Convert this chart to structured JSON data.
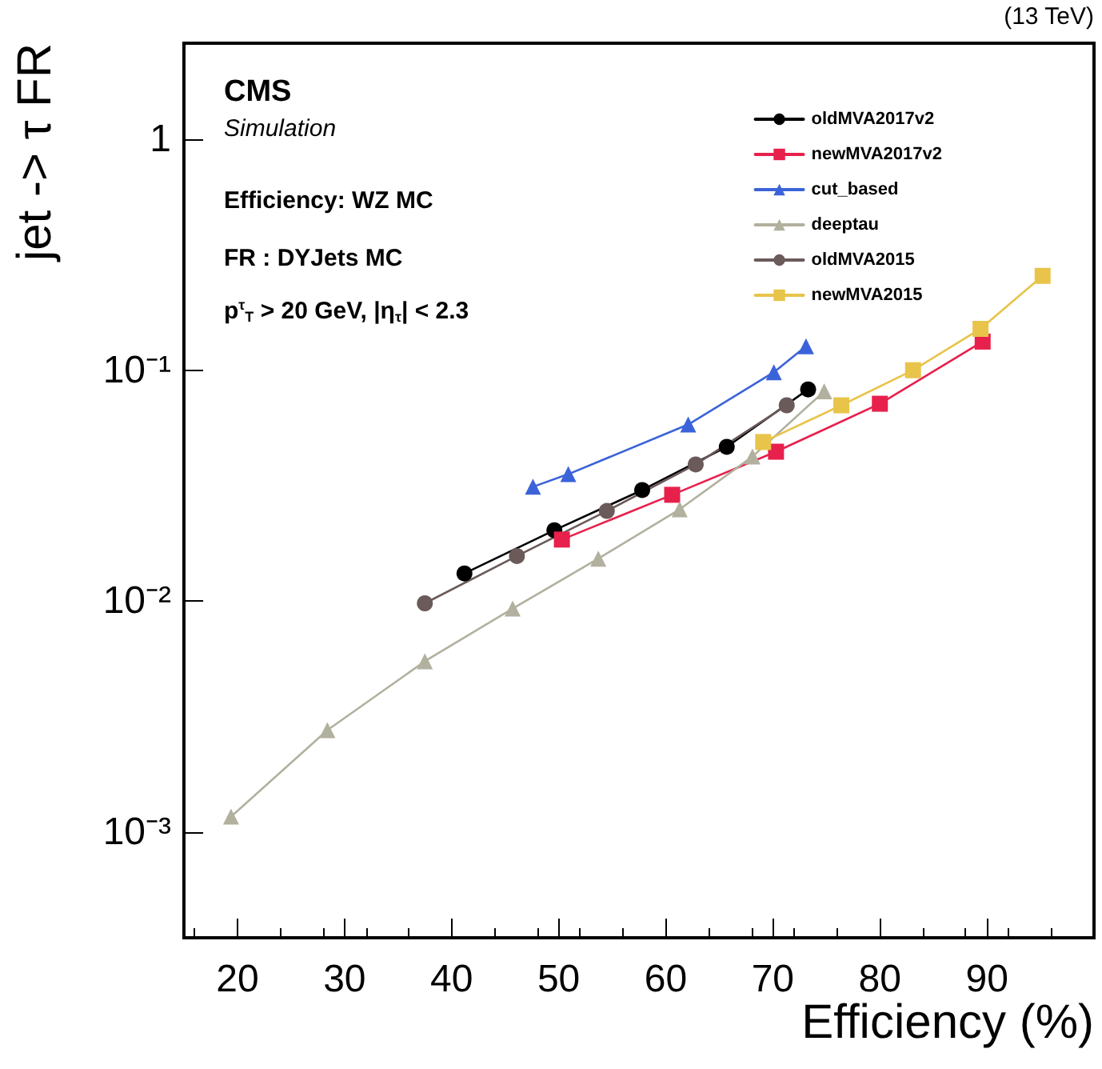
{
  "chart_data": {
    "type": "line",
    "xlabel": "Efficiency (%)",
    "ylabel": "jet -> τ FR",
    "annotations": [
      "(13 TeV)",
      "CMS",
      "Simulation",
      "Efficiency: WZ MC",
      "FR : DYJets MC",
      "p$^{τ}$$_{T}$ > 20 GeV, |η$_{τ}$| < 2.3"
    ],
    "log": "y",
    "xlim": [
      15,
      100
    ],
    "ylim": [
      0.00035,
      2.6
    ],
    "xticks": [
      20,
      30,
      40,
      50,
      60,
      70,
      80,
      90
    ],
    "yticks": [
      {
        "value": 0.001,
        "label": "10⁻³"
      },
      {
        "value": 0.01,
        "label": "10⁻²"
      },
      {
        "value": 0.1,
        "label": "10⁻¹"
      },
      1
    ],
    "grid": false,
    "legend": "top right",
    "line_style": "solid",
    "series": [
      {
        "name": "oldMVA2017v2",
        "color": "#000000",
        "marker": "circle",
        "x": [
          41.2,
          49.6,
          57.8,
          65.7,
          73.3
        ],
        "values": [
          0.0132,
          0.0203,
          0.0303,
          0.0466,
          0.0826
        ]
      },
      {
        "name": "newMVA2017v2",
        "color": "#e8204c",
        "marker": "square",
        "x": [
          50.3,
          60.6,
          70.3,
          80.0,
          89.6
        ],
        "values": [
          0.0185,
          0.0289,
          0.0444,
          0.0716,
          0.133
        ]
      },
      {
        "name": "cut_based",
        "color": "#3b63d9",
        "marker": "triangle",
        "x": [
          47.6,
          50.9,
          62.1,
          70.1,
          73.1
        ],
        "values": [
          0.0313,
          0.0355,
          0.0582,
          0.098,
          0.127
        ]
      },
      {
        "name": "deeptau",
        "color": "#b2b09e",
        "marker": "triangle",
        "x": [
          19.4,
          28.4,
          37.5,
          45.7,
          53.7,
          61.3,
          68.1,
          74.8
        ],
        "values": [
          0.00117,
          0.00277,
          0.0055,
          0.0093,
          0.0153,
          0.025,
          0.0423,
          0.081
        ]
      },
      {
        "name": "oldMVA2015",
        "color": "#6b5a5a",
        "marker": "circle",
        "x": [
          37.5,
          46.1,
          54.5,
          62.8,
          71.3
        ],
        "values": [
          0.0098,
          0.0157,
          0.0246,
          0.0391,
          0.0705
        ]
      },
      {
        "name": "newMVA2015",
        "color": "#e8c44a",
        "marker": "square",
        "x": [
          69.1,
          76.4,
          83.1,
          89.4,
          95.2
        ],
        "values": [
          0.0489,
          0.0705,
          0.1,
          0.151,
          0.256
        ]
      }
    ]
  }
}
